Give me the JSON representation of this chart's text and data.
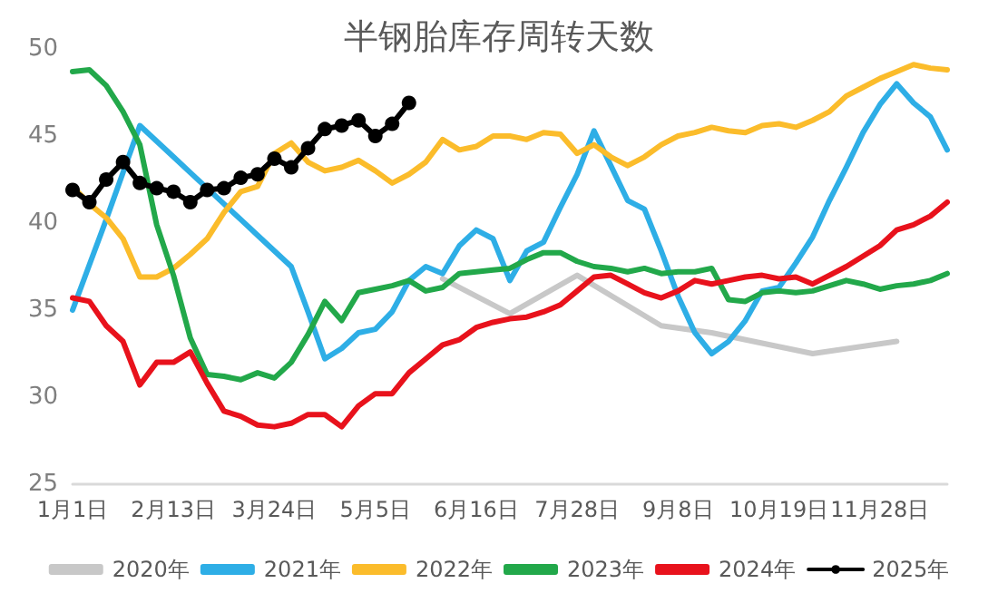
{
  "chart_data": {
    "type": "line",
    "title": "半钢胎库存周转天数",
    "categories": [
      "1月1日",
      null,
      null,
      null,
      null,
      null,
      "2月13日",
      null,
      null,
      null,
      null,
      null,
      "3月24日",
      null,
      null,
      null,
      null,
      null,
      "5月5日",
      null,
      null,
      null,
      null,
      null,
      "6月16日",
      null,
      null,
      null,
      null,
      null,
      "7月28日",
      null,
      null,
      null,
      null,
      null,
      "9月8日",
      null,
      null,
      null,
      null,
      null,
      "10月19日",
      null,
      null,
      null,
      null,
      null,
      "11月28日",
      null,
      null,
      null,
      null
    ],
    "ylim": [
      25,
      50
    ],
    "yticks": [
      25,
      30,
      35,
      40,
      45,
      50
    ],
    "grid": false,
    "legend": "bottom",
    "line_style": "solid",
    "series": [
      {
        "name": "2020年",
        "color": "#c8c8c8",
        "marker": "none",
        "values": [
          null,
          null,
          null,
          null,
          null,
          null,
          null,
          null,
          null,
          null,
          null,
          null,
          null,
          null,
          null,
          null,
          null,
          null,
          null,
          null,
          null,
          null,
          36.8,
          null,
          null,
          null,
          34.8,
          null,
          null,
          null,
          37.0,
          null,
          null,
          null,
          null,
          34.1,
          null,
          null,
          33.7,
          null,
          null,
          null,
          null,
          null,
          32.5,
          null,
          null,
          null,
          null,
          33.2,
          null,
          null,
          null
        ]
      },
      {
        "name": "2021年",
        "color": "#2eaee6",
        "marker": "none",
        "values": [
          35.0,
          37.6,
          40.2,
          42.9,
          45.6,
          44.7,
          43.8,
          42.9,
          42.0,
          41.1,
          40.2,
          39.3,
          38.4,
          37.5,
          34.9,
          32.2,
          32.8,
          33.7,
          33.9,
          34.9,
          36.7,
          37.5,
          37.1,
          38.7,
          39.6,
          39.1,
          36.7,
          38.4,
          38.9,
          40.9,
          42.8,
          45.3,
          43.3,
          41.3,
          40.8,
          38.4,
          35.8,
          33.7,
          32.5,
          33.2,
          34.4,
          36.1,
          36.3,
          37.7,
          39.2,
          41.3,
          43.2,
          45.2,
          46.8,
          48.0,
          46.9,
          46.1,
          44.2
        ]
      },
      {
        "name": "2022年",
        "color": "#fbbc2b",
        "marker": "none",
        "values": [
          42.1,
          41.1,
          40.3,
          39.1,
          36.9,
          36.9,
          37.4,
          38.2,
          39.1,
          40.6,
          41.8,
          42.1,
          44.0,
          44.6,
          43.5,
          43.0,
          43.2,
          43.6,
          43.0,
          42.3,
          42.8,
          43.5,
          44.8,
          44.2,
          44.4,
          45.0,
          45.0,
          44.8,
          45.2,
          45.1,
          44.0,
          44.5,
          43.8,
          43.3,
          43.8,
          44.5,
          45.0,
          45.2,
          45.5,
          45.3,
          45.2,
          45.6,
          45.7,
          45.5,
          45.9,
          46.4,
          47.3,
          47.8,
          48.3,
          48.7,
          49.1,
          48.9,
          48.8
        ]
      },
      {
        "name": "2023年",
        "color": "#22a84a",
        "marker": "none",
        "values": [
          48.7,
          48.8,
          47.9,
          46.4,
          44.5,
          39.9,
          37.0,
          33.4,
          31.3,
          31.2,
          31.0,
          31.4,
          31.1,
          32.0,
          33.6,
          35.5,
          34.4,
          36.0,
          36.2,
          36.4,
          36.7,
          36.1,
          36.3,
          37.1,
          37.2,
          37.3,
          37.4,
          37.9,
          38.3,
          38.3,
          37.8,
          37.5,
          37.4,
          37.2,
          37.4,
          37.1,
          37.2,
          37.2,
          37.4,
          35.6,
          35.5,
          36.0,
          36.1,
          36.0,
          36.1,
          36.4,
          36.7,
          36.5,
          36.2,
          36.4,
          36.5,
          36.7,
          37.1
        ]
      },
      {
        "name": "2024年",
        "color": "#e8121c",
        "marker": "none",
        "values": [
          35.7,
          35.5,
          34.1,
          33.2,
          30.7,
          32.0,
          32.0,
          32.6,
          30.8,
          29.2,
          28.9,
          28.4,
          28.3,
          28.5,
          29.0,
          29.0,
          28.3,
          29.5,
          30.2,
          30.2,
          31.4,
          32.2,
          33.0,
          33.3,
          34.0,
          34.3,
          34.5,
          34.6,
          34.9,
          35.3,
          36.1,
          36.9,
          37.0,
          36.5,
          36.0,
          35.7,
          36.1,
          36.7,
          36.5,
          36.7,
          36.9,
          37.0,
          36.8,
          36.9,
          36.5,
          37.0,
          37.5,
          38.1,
          38.7,
          39.6,
          39.9,
          40.4,
          41.2
        ]
      },
      {
        "name": "2025年",
        "color": "#000000",
        "marker": "circle",
        "values": [
          41.9,
          41.2,
          42.5,
          43.5,
          42.3,
          42.0,
          41.8,
          41.2,
          41.9,
          42.0,
          42.6,
          42.8,
          43.7,
          43.2,
          44.3,
          45.4,
          45.6,
          45.9,
          45.0,
          45.7,
          46.9,
          null,
          null,
          null,
          null,
          null,
          null,
          null,
          null,
          null,
          null,
          null,
          null,
          null,
          null,
          null,
          null,
          null,
          null,
          null,
          null,
          null,
          null,
          null,
          null,
          null,
          null,
          null,
          null,
          null,
          null,
          null,
          null
        ]
      }
    ]
  }
}
